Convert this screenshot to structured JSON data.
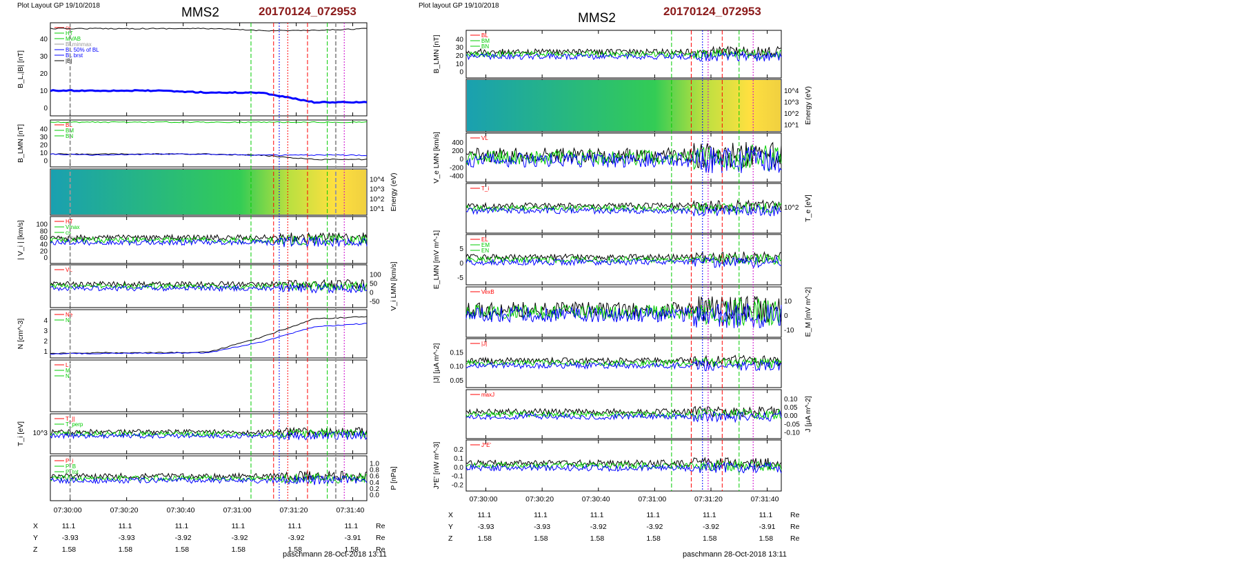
{
  "left": {
    "header": "Plot Layout GP 19/10/2018",
    "title": "MMS2",
    "event_id": "20170124_072953",
    "footer": "paschmann 28-Oct-2018 13:11",
    "time_ticks": [
      "07:30:00",
      "07:30:20",
      "07:30:40",
      "07:31:00",
      "07:31:20",
      "07:31:40"
    ],
    "coords": {
      "labels": [
        "X",
        "Y",
        "Z"
      ],
      "unit": "Re",
      "X": [
        "11.1",
        "11.1",
        "11.1",
        "11.1",
        "11.1",
        "11.1"
      ],
      "Y": [
        "-3.93",
        "-3.93",
        "-3.92",
        "-3.92",
        "-3.92",
        "-3.91"
      ],
      "Z": [
        "1.58",
        "1.58",
        "1.58",
        "1.58",
        "1.58",
        "1.58"
      ]
    }
  },
  "right": {
    "header": "Plot layout GP 19/10/2018",
    "title": "MMS2",
    "event_id": "20170124_072953",
    "footer": "paschmann 28-Oct-2018 13:11",
    "time_ticks": [
      "07:30:00",
      "07:30:20",
      "07:30:40",
      "07:31:00",
      "07:31:20",
      "07:31:40"
    ],
    "coords": {
      "labels": [
        "X",
        "Y",
        "Z"
      ],
      "unit": "Re",
      "X": [
        "11.1",
        "11.1",
        "11.1",
        "11.1",
        "11.1",
        "11.1"
      ],
      "Y": [
        "-3.93",
        "-3.93",
        "-3.92",
        "-3.92",
        "-3.92",
        "-3.91"
      ],
      "Z": [
        "1.58",
        "1.58",
        "1.58",
        "1.58",
        "1.58",
        "1.58"
      ]
    }
  },
  "colors": {
    "red": "#ff0000",
    "green": "#00cc00",
    "blue": "#0000ff",
    "black": "#000000",
    "magenta": "#cc00cc",
    "cyan": "#00aacc",
    "gray": "#999999",
    "title_red": "#8b1a1a"
  },
  "chart_data": [
    {
      "id": "left_stack",
      "type": "line",
      "x": {
        "start": "07:29:53",
        "end": "07:31:45",
        "ticks": [
          "07:30:00",
          "07:30:20",
          "07:30:40",
          "07:31:00",
          "07:31:20",
          "07:31:40"
        ]
      },
      "panels": [
        {
          "ylabel": "B_L,|B| [nT]",
          "ylim": [
            -2,
            46
          ],
          "yticks": [
            "0",
            "10",
            "20",
            "30",
            "40"
          ],
          "legend": [
            "cs",
            "HT",
            "MVAB",
            "BLminmax",
            "BL 50% of BL",
            "BL brst",
            "|B|"
          ],
          "series": [
            {
              "name": "|B|",
              "values": [
                43,
                43,
                43,
                43,
                42,
                42,
                43
              ]
            },
            {
              "name": "BL brst",
              "values": [
                11,
                11,
                11,
                10,
                10,
                5,
                5
              ]
            }
          ]
        },
        {
          "ylabel": "B_LMN [nT]",
          "ylim": [
            -2,
            42
          ],
          "yticks": [
            "0",
            "10",
            "20",
            "30",
            "40"
          ],
          "legend": [
            "BL",
            "BM",
            "BN"
          ],
          "series": [
            {
              "name": "BL",
              "values": [
                10,
                10,
                10,
                10,
                9,
                5,
                5
              ]
            },
            {
              "name": "BM",
              "values": [
                10,
                9,
                10,
                10,
                9,
                9,
                9
              ]
            },
            {
              "name": "BN",
              "values": [
                40,
                40,
                40,
                40,
                40,
                40,
                40
              ]
            }
          ]
        },
        {
          "ylabel": "Energy (eV)",
          "type": "heatmap",
          "yticks": [
            "10^1",
            "10^2",
            "10^3",
            "10^4"
          ]
        },
        {
          "ylabel": "| V_i | [km/s]",
          "ylim": [
            0,
            110
          ],
          "yticks": [
            "0",
            "20",
            "40",
            "60",
            "80",
            "100"
          ],
          "legend": [
            "HT",
            "Vmax",
            "cs",
            "dVmax"
          ]
        },
        {
          "ylabel": "V_i LMN [km/s]",
          "ylim": [
            -80,
            110
          ],
          "yticks": [
            "-50",
            "0",
            "50",
            "100"
          ],
          "legend": [
            "VL"
          ]
        },
        {
          "ylabel": "N [cm^-3]",
          "ylim": [
            0,
            4.2
          ],
          "yticks": [
            "1",
            "2",
            "3",
            "4"
          ],
          "legend": [
            "Ne",
            "Ni"
          ],
          "series": [
            {
              "name": "Ni",
              "values": [
                0.4,
                0.45,
                0.45,
                0.5,
                1.8,
                3.4,
                3.6
              ]
            },
            {
              "name": "Ne",
              "values": [
                0.35,
                0.4,
                0.4,
                0.45,
                1.4,
                2.7,
                3.0
              ]
            }
          ]
        },
        {
          "ylabel": "",
          "legend": [
            "L",
            "M",
            "N"
          ]
        },
        {
          "ylabel": "T_i [eV]",
          "yticks": [
            "10^3"
          ],
          "legend": [
            "T_||",
            "T_perp"
          ]
        },
        {
          "ylabel": "P [nPa]",
          "ylim": [
            0,
            1.05
          ],
          "yticks": [
            "0.0",
            "0.2",
            "0.4",
            "0.6",
            "0.8",
            "1.0"
          ],
          "legend": [
            "P_i",
            "P_B",
            "P_tot"
          ]
        }
      ],
      "events": [
        {
          "t": "07:30:00",
          "color": "gray",
          "style": "dashed"
        },
        {
          "t": "07:31:04",
          "color": "green",
          "style": "dashed"
        },
        {
          "t": "07:31:12",
          "color": "red",
          "style": "dashed"
        },
        {
          "t": "07:31:14",
          "color": "blue",
          "style": "dotted"
        },
        {
          "t": "07:31:17",
          "color": "red",
          "style": "dotted"
        },
        {
          "t": "07:31:24",
          "color": "red",
          "style": "dashed"
        },
        {
          "t": "07:31:31",
          "color": "green",
          "style": "dashed"
        },
        {
          "t": "07:31:34",
          "color": "gray",
          "style": "dashed"
        },
        {
          "t": "07:31:37",
          "color": "magenta",
          "style": "dotted"
        }
      ]
    },
    {
      "id": "right_stack",
      "type": "line",
      "x": {
        "start": "07:29:53",
        "end": "07:31:45",
        "ticks": [
          "07:30:00",
          "07:30:20",
          "07:30:40",
          "07:31:00",
          "07:31:20",
          "07:31:40"
        ]
      },
      "panels": [
        {
          "ylabel": "B_LMN [nT]",
          "ylim": [
            -2,
            42
          ],
          "yticks": [
            "0",
            "10",
            "20",
            "30",
            "40"
          ],
          "legend": [
            "BL",
            "BM",
            "BN"
          ]
        },
        {
          "ylabel": "Energy (eV)",
          "type": "heatmap",
          "yticks": [
            "10^1",
            "10^2",
            "10^3",
            "10^4"
          ]
        },
        {
          "ylabel": "V_e LMN [km/s]",
          "ylim": [
            -500,
            500
          ],
          "yticks": [
            "-400",
            "-200",
            "0",
            "200",
            "400"
          ],
          "legend": [
            "VL"
          ]
        },
        {
          "ylabel": "T_e [eV]",
          "yticks": [
            "10^2"
          ],
          "legend": [
            "T_i"
          ]
        },
        {
          "ylabel": "E_LMN [mV m^-1]",
          "ylim": [
            -8,
            8
          ],
          "yticks": [
            "-5",
            "0",
            "5"
          ],
          "legend": [
            "EL",
            "EM",
            "EN"
          ]
        },
        {
          "ylabel": "E_M [mV m^-2]",
          "ylim": [
            -15,
            15
          ],
          "yticks": [
            "-10",
            "0",
            "10"
          ],
          "legend": [
            "VexB"
          ]
        },
        {
          "ylabel": "|J| [µA m^-2]",
          "ylim": [
            0,
            0.16
          ],
          "yticks": [
            "0.05",
            "0.10",
            "0.15"
          ],
          "legend": [
            "|J|"
          ]
        },
        {
          "ylabel": "J [µA m^-2]",
          "ylim": [
            -0.15,
            0.12
          ],
          "yticks": [
            "-0.10",
            "-0.05",
            "0.00",
            "0.05",
            "0.10"
          ],
          "legend": [
            "maxJ"
          ]
        },
        {
          "ylabel": "J*E' [nW m^-3]",
          "ylim": [
            -0.25,
            0.25
          ],
          "yticks": [
            "-0.2",
            "-0.1",
            "0.0",
            "0.1",
            "0.2"
          ],
          "legend": [
            "J*E'"
          ]
        }
      ],
      "events": [
        {
          "t": "07:31:06",
          "color": "green",
          "style": "dashed"
        },
        {
          "t": "07:31:13",
          "color": "red",
          "style": "dashed"
        },
        {
          "t": "07:31:17",
          "color": "blue",
          "style": "dotted"
        },
        {
          "t": "07:31:19",
          "color": "magenta",
          "style": "dotted"
        },
        {
          "t": "07:31:24",
          "color": "red",
          "style": "dashed"
        },
        {
          "t": "07:31:30",
          "color": "green",
          "style": "dashed"
        },
        {
          "t": "07:31:35",
          "color": "magenta",
          "style": "dotted"
        }
      ]
    }
  ]
}
